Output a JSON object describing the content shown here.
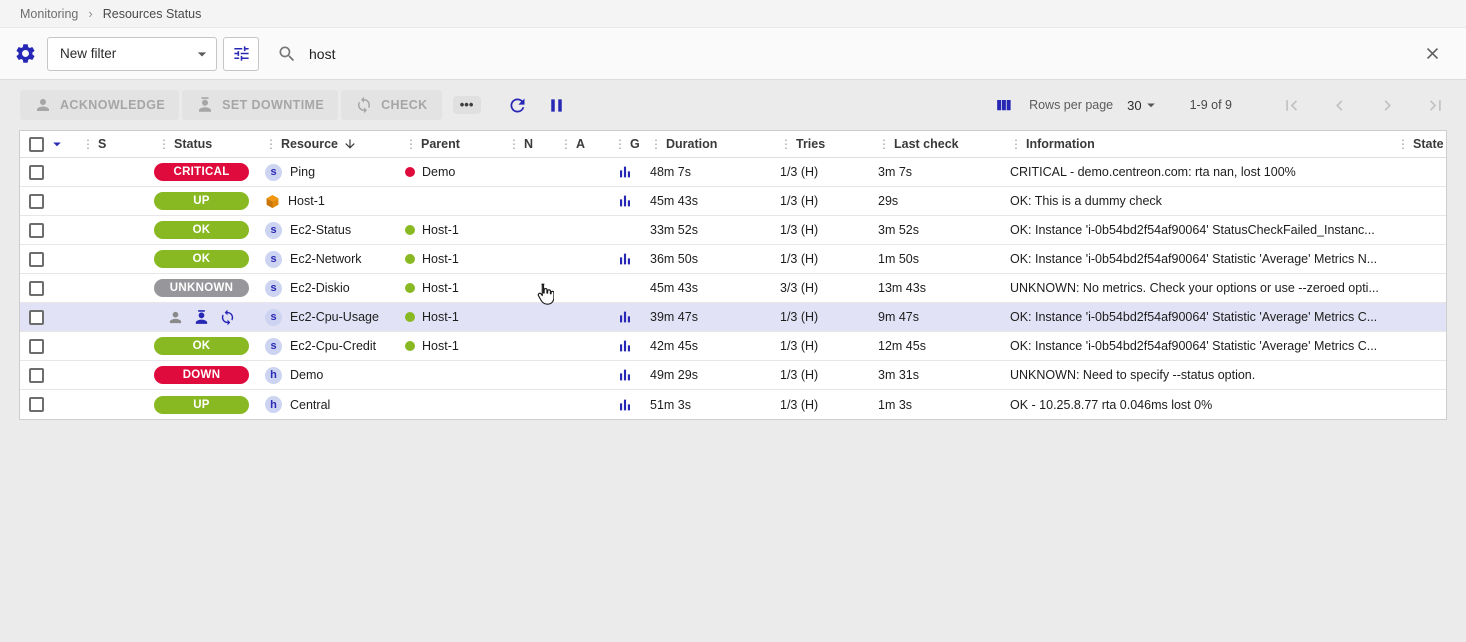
{
  "breadcrumb": {
    "items": [
      {
        "label": "Monitoring"
      },
      {
        "label": "Resources Status"
      }
    ]
  },
  "filter": {
    "preset_label": "New filter",
    "search_value": "host"
  },
  "toolbar": {
    "acknowledge_label": "ACKNOWLEDGE",
    "set_downtime_label": "SET DOWNTIME",
    "check_label": "CHECK",
    "more_label": "•••"
  },
  "pagination": {
    "rows_per_page_label": "Rows per page",
    "rows_per_page_value": "30",
    "range_label": "1-9 of 9"
  },
  "icons": {
    "settings": "gear-icon",
    "tune": "filter-sliders-icon",
    "search": "search-icon",
    "clear": "close-icon",
    "refresh": "refresh-icon",
    "pause": "pause-icon",
    "columns": "view-columns-icon",
    "graph": "bar-chart-icon"
  },
  "colors": {
    "accent": "#2727b5",
    "critical": "#e00b3d",
    "ok": "#88b922",
    "unknown": "#96969b",
    "highlight": "#e2e2f6"
  },
  "table": {
    "columns": [
      "S",
      "Status",
      "Resource",
      "Parent",
      "N",
      "A",
      "G",
      "Duration",
      "Tries",
      "Last check",
      "Information",
      "State"
    ],
    "rows": [
      {
        "status": {
          "label": "CRITICAL",
          "type": "critical"
        },
        "resource_icon": "service",
        "resource": "Ping",
        "parent_dot": "critical",
        "parent": "Demo",
        "graph": true,
        "duration": "48m 7s",
        "tries": "1/3 (H)",
        "last_check": "3m 7s",
        "information": "CRITICAL - demo.centreon.com: rta nan, lost 100%"
      },
      {
        "status": {
          "label": "UP",
          "type": "ok"
        },
        "resource_icon": "cube",
        "resource": "Host-1",
        "parent": "",
        "graph": true,
        "duration": "45m 43s",
        "tries": "1/3 (H)",
        "last_check": "29s",
        "information": "OK: This is a dummy check"
      },
      {
        "status": {
          "label": "OK",
          "type": "ok"
        },
        "resource_icon": "service",
        "resource": "Ec2-Status",
        "parent_dot": "ok",
        "parent": "Host-1",
        "graph": false,
        "duration": "33m 52s",
        "tries": "1/3 (H)",
        "last_check": "3m 52s",
        "information": "OK: Instance 'i-0b54bd2f54af90064' StatusCheckFailed_Instanc..."
      },
      {
        "status": {
          "label": "OK",
          "type": "ok"
        },
        "resource_icon": "service",
        "resource": "Ec2-Network",
        "parent_dot": "ok",
        "parent": "Host-1",
        "graph": true,
        "duration": "36m 50s",
        "tries": "1/3 (H)",
        "last_check": "1m 50s",
        "information": "OK: Instance 'i-0b54bd2f54af90064' Statistic 'Average' Metrics N..."
      },
      {
        "status": {
          "label": "UNKNOWN",
          "type": "unknown"
        },
        "resource_icon": "service",
        "resource": "Ec2-Diskio",
        "parent_dot": "ok",
        "parent": "Host-1",
        "graph": false,
        "duration": "45m 43s",
        "tries": "3/3 (H)",
        "last_check": "13m 43s",
        "information": "UNKNOWN: No metrics. Check your options or use --zeroed opti..."
      },
      {
        "state_icons": [
          "acknowledged",
          "downtime",
          "sync"
        ],
        "highlighted": true,
        "resource_icon": "service",
        "resource": "Ec2-Cpu-Usage",
        "parent_dot": "ok",
        "parent": "Host-1",
        "graph": true,
        "duration": "39m 47s",
        "tries": "1/3 (H)",
        "last_check": "9m 47s",
        "information": "OK: Instance 'i-0b54bd2f54af90064' Statistic 'Average' Metrics C..."
      },
      {
        "status": {
          "label": "OK",
          "type": "ok"
        },
        "resource_icon": "service",
        "resource": "Ec2-Cpu-Credit",
        "parent_dot": "ok",
        "parent": "Host-1",
        "graph": true,
        "duration": "42m 45s",
        "tries": "1/3 (H)",
        "last_check": "12m 45s",
        "information": "OK: Instance 'i-0b54bd2f54af90064' Statistic 'Average' Metrics C..."
      },
      {
        "status": {
          "label": "DOWN",
          "type": "critical"
        },
        "resource_icon": "host",
        "resource": "Demo",
        "parent": "",
        "graph": true,
        "duration": "49m 29s",
        "tries": "1/3 (H)",
        "last_check": "3m 31s",
        "information": "UNKNOWN: Need to specify --status option."
      },
      {
        "status": {
          "label": "UP",
          "type": "ok"
        },
        "resource_icon": "host",
        "resource": "Central",
        "parent": "",
        "graph": true,
        "duration": "51m 3s",
        "tries": "1/3 (H)",
        "last_check": "1m 3s",
        "information": "OK - 10.25.8.77 rta 0.046ms lost 0%"
      }
    ]
  }
}
